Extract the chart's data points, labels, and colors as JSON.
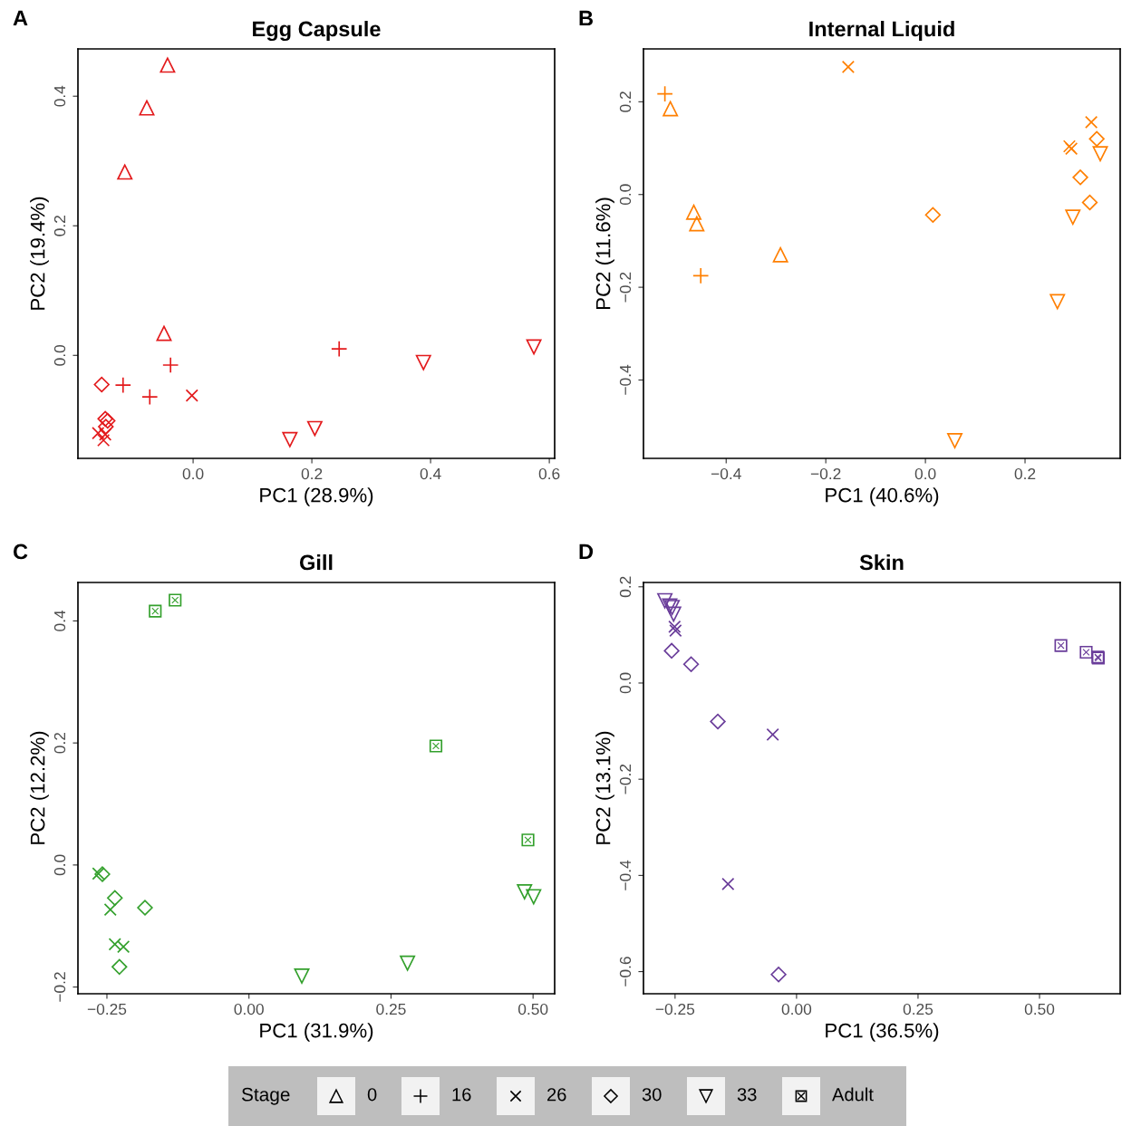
{
  "chart_data": [
    {
      "type": "scatter",
      "title": "Egg Capsule",
      "xlabel": "PC1 (28.9%)",
      "ylabel": "PC2 (19.4%)",
      "annotations": [
        "A"
      ],
      "grid": false,
      "xlim": [
        -0.194,
        0.609
      ],
      "ylim": [
        -0.159,
        0.473
      ],
      "xticks": [
        {
          "value": 0,
          "label": "0.0"
        },
        {
          "value": 0.2,
          "label": "0.2"
        },
        {
          "value": 0.4,
          "label": "0.4"
        },
        {
          "value": 0.6,
          "label": "0.6"
        }
      ],
      "yticks": [
        {
          "value": 0,
          "label": "0.0"
        },
        {
          "value": 0.2,
          "label": "0.2"
        },
        {
          "value": 0.4,
          "label": "0.4"
        }
      ],
      "series": [
        {
          "marker": "triangle",
          "color": "#e31a1c",
          "x": [
            -0.043,
            -0.078,
            -0.115,
            -0.049
          ],
          "values": [
            0.448,
            0.382,
            0.283,
            0.034
          ]
        },
        {
          "marker": "plus",
          "color": "#e31a1c",
          "x": [
            -0.118,
            -0.073,
            -0.038,
            0.246
          ],
          "values": [
            -0.046,
            -0.064,
            -0.015,
            0.01
          ]
        },
        {
          "marker": "cross",
          "color": "#e31a1c",
          "x": [
            -0.002,
            -0.16,
            -0.151,
            -0.148
          ],
          "values": [
            -0.062,
            -0.12,
            -0.131,
            -0.122
          ]
        },
        {
          "marker": "diamond",
          "color": "#e31a1c",
          "x": [
            -0.154,
            -0.148,
            -0.144,
            -0.147
          ],
          "values": [
            -0.045,
            -0.098,
            -0.101,
            -0.11
          ]
        },
        {
          "marker": "triangle_down",
          "color": "#e31a1c",
          "x": [
            0.163,
            0.205,
            0.388,
            0.574
          ],
          "values": [
            -0.13,
            -0.113,
            -0.011,
            0.013
          ]
        }
      ]
    },
    {
      "type": "scatter",
      "title": "Internal Liquid",
      "xlabel": "PC1 (40.6%)",
      "ylabel": "PC2 (11.6%)",
      "annotations": [
        "B"
      ],
      "grid": false,
      "xlim": [
        -0.566,
        0.391
      ],
      "ylim": [
        -0.569,
        0.314
      ],
      "xticks": [
        {
          "value": -0.4,
          "label": "−0.4"
        },
        {
          "value": -0.2,
          "label": "−0.2"
        },
        {
          "value": 0,
          "label": "0.0"
        },
        {
          "value": 0.2,
          "label": "0.2"
        }
      ],
      "yticks": [
        {
          "value": -0.4,
          "label": "−0.4"
        },
        {
          "value": -0.2,
          "label": "−0.2"
        },
        {
          "value": 0,
          "label": "0.0"
        },
        {
          "value": 0.2,
          "label": "0.2"
        }
      ],
      "series": [
        {
          "marker": "triangle",
          "color": "#ff7f00",
          "x": [
            -0.512,
            -0.465,
            -0.459,
            -0.291
          ],
          "values": [
            0.185,
            -0.038,
            -0.063,
            -0.13
          ]
        },
        {
          "marker": "plus",
          "color": "#ff7f00",
          "x": [
            -0.523,
            -0.451
          ],
          "values": [
            0.217,
            -0.175
          ]
        },
        {
          "marker": "cross",
          "color": "#ff7f00",
          "x": [
            -0.155,
            0.289,
            0.293,
            0.333
          ],
          "values": [
            0.275,
            0.104,
            0.099,
            0.156
          ]
        },
        {
          "marker": "diamond",
          "color": "#ff7f00",
          "x": [
            0.015,
            0.344,
            0.311,
            0.33
          ],
          "values": [
            -0.044,
            0.12,
            0.037,
            -0.017
          ]
        },
        {
          "marker": "triangle_down",
          "color": "#ff7f00",
          "x": [
            0.351,
            0.296,
            0.265,
            0.059
          ],
          "values": [
            0.088,
            -0.049,
            -0.231,
            -0.531
          ]
        }
      ]
    },
    {
      "type": "scatter",
      "title": "Gill",
      "xlabel": "PC1 (31.9%)",
      "ylabel": "PC2 (12.2%)",
      "annotations": [
        "C"
      ],
      "grid": false,
      "xlim": [
        -0.301,
        0.538
      ],
      "ylim": [
        -0.211,
        0.463
      ],
      "xticks": [
        {
          "value": -0.25,
          "label": "−0.25"
        },
        {
          "value": 0,
          "label": "0.00"
        },
        {
          "value": 0.25,
          "label": "0.25"
        },
        {
          "value": 0.5,
          "label": "0.50"
        }
      ],
      "yticks": [
        {
          "value": -0.2,
          "label": "−0.2"
        },
        {
          "value": 0,
          "label": "0.0"
        },
        {
          "value": 0.2,
          "label": "0.2"
        },
        {
          "value": 0.4,
          "label": "0.4"
        }
      ],
      "series": [
        {
          "marker": "cross",
          "color": "#33a02c",
          "x": [
            -0.265,
            -0.244,
            -0.236,
            -0.221
          ],
          "values": [
            -0.014,
            -0.073,
            -0.13,
            -0.134
          ]
        },
        {
          "marker": "diamond",
          "color": "#33a02c",
          "x": [
            -0.258,
            -0.236,
            -0.183,
            -0.228
          ],
          "values": [
            -0.015,
            -0.054,
            -0.07,
            -0.167
          ]
        },
        {
          "marker": "triangle_down",
          "color": "#33a02c",
          "x": [
            0.093,
            0.279,
            0.485,
            0.501
          ],
          "values": [
            -0.182,
            -0.161,
            -0.044,
            -0.052
          ]
        },
        {
          "marker": "square",
          "color": "#33a02c",
          "x": [
            -0.165,
            -0.13,
            0.329,
            0.491
          ],
          "values": [
            0.416,
            0.434,
            0.195,
            0.041
          ]
        }
      ]
    },
    {
      "type": "scatter",
      "title": "Skin",
      "xlabel": "PC1 (36.5%)",
      "ylabel": "PC2 (13.1%)",
      "annotations": [
        "D"
      ],
      "grid": false,
      "xlim": [
        -0.315,
        0.666
      ],
      "ylim": [
        -0.646,
        0.209
      ],
      "xticks": [
        {
          "value": -0.25,
          "label": "−0.25"
        },
        {
          "value": 0,
          "label": "0.00"
        },
        {
          "value": 0.25,
          "label": "0.25"
        },
        {
          "value": 0.5,
          "label": "0.50"
        }
      ],
      "yticks": [
        {
          "value": -0.6,
          "label": "−0.6"
        },
        {
          "value": -0.4,
          "label": "−0.4"
        },
        {
          "value": -0.2,
          "label": "−0.2"
        },
        {
          "value": 0,
          "label": "0.0"
        },
        {
          "value": 0.2,
          "label": "0.2"
        }
      ],
      "series": [
        {
          "marker": "cross",
          "color": "#6a3d9a",
          "x": [
            -0.251,
            -0.249,
            -0.049,
            -0.141
          ],
          "values": [
            0.117,
            0.109,
            -0.107,
            -0.418
          ]
        },
        {
          "marker": "diamond",
          "color": "#6a3d9a",
          "x": [
            -0.257,
            -0.217,
            -0.162,
            -0.037
          ],
          "values": [
            0.067,
            0.039,
            -0.08,
            -0.606
          ]
        },
        {
          "marker": "triangle_down",
          "color": "#6a3d9a",
          "x": [
            -0.271,
            -0.261,
            -0.256,
            -0.253
          ],
          "values": [
            0.171,
            0.16,
            0.157,
            0.143
          ]
        },
        {
          "color": "#6a3d9a",
          "x": [
            0.544,
            0.596,
            0.62,
            0.621
          ],
          "values": [
            0.078,
            0.064,
            0.054,
            0.052
          ]
        }
      ]
    },
    {
      "type": "other",
      "annotations": [
        "Stage",
        "0",
        "16",
        "26",
        "30",
        "33",
        "Adult"
      ]
    }
  ]
}
